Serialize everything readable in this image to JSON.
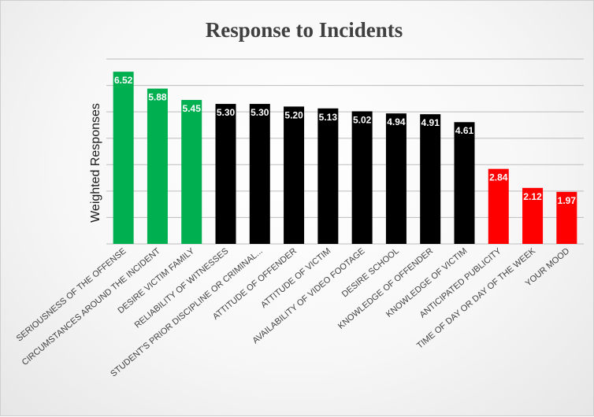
{
  "chart_data": {
    "type": "bar",
    "title": "Response to Incidents",
    "xlabel": "",
    "ylabel": "Weighted Responses",
    "ylim": [
      0,
      7
    ],
    "grid": true,
    "legend": "none",
    "categories": [
      "SERIOUSNESS OF THE OFFENSE",
      "CIRCUMSTANCES AROUND THE INCIDENT",
      "DESIRE VICTIM FAMILY",
      "RELIABILITY OF WITNESSES",
      "STUDENT'S PRIOR DISCIPLINE OR CRIMINAL...",
      "ATTITUDE OF OFFENDER",
      "ATTITUDE OF VICTIM",
      "AVAILABILITY OF VIDEO FOOTAGE",
      "DESIRE SCHOOL",
      "KNOWLEDGE OF OFFENDER",
      "KNOWLEDGE OF VICTIM",
      "ANTICIPATED PUBLICITY",
      "TIME OF DAY OR DAY OF THE WEEK",
      "YOUR MOOD"
    ],
    "values": [
      6.52,
      5.88,
      5.45,
      5.3,
      5.3,
      5.2,
      5.13,
      5.02,
      4.94,
      4.91,
      4.61,
      2.84,
      2.12,
      1.97
    ],
    "value_labels": [
      "6.52",
      "5.88",
      "5.45",
      "5.30",
      "5.30",
      "5.20",
      "5.13",
      "5.02",
      "4.94",
      "4.91",
      "4.61",
      "2.84",
      "2.12",
      "1.97"
    ],
    "bar_colors": [
      "#00b050",
      "#00b050",
      "#00b050",
      "#000000",
      "#000000",
      "#000000",
      "#000000",
      "#000000",
      "#000000",
      "#000000",
      "#000000",
      "#ff0000",
      "#ff0000",
      "#ff0000"
    ]
  }
}
